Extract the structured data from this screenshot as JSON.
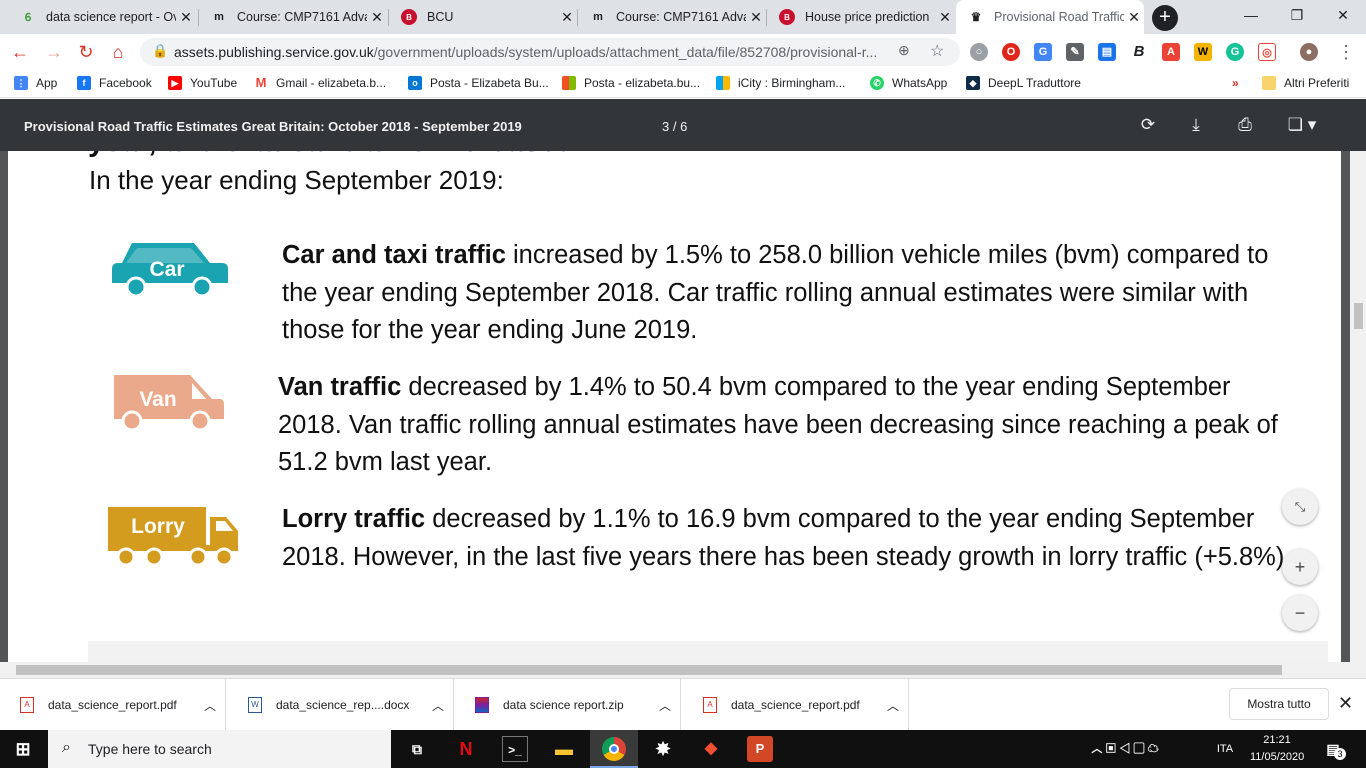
{
  "browser": {
    "tabs": [
      {
        "title": "data science report - Ov",
        "favicon": "overleaf-icon",
        "active": false
      },
      {
        "title": "Course: CMP7161 Adva",
        "favicon": "moodle-icon",
        "active": false
      },
      {
        "title": "BCU",
        "favicon": "bcu-icon",
        "active": false
      },
      {
        "title": "Course: CMP7161 Adva",
        "favicon": "moodle-icon",
        "active": false
      },
      {
        "title": "House price prediction",
        "favicon": "bcu-icon",
        "active": false
      },
      {
        "title": "Provisional Road Traffic",
        "favicon": "govuk-crown-icon",
        "active": true
      }
    ],
    "url_host": "assets.publishing.service.gov.uk",
    "url_path": "/government/uploads/system/uploads/attachment_data/file/852708/provisional-r...",
    "bookmarks": [
      {
        "label": "App",
        "icon": "apps-grid-icon"
      },
      {
        "label": "Facebook",
        "icon": "facebook-icon"
      },
      {
        "label": "YouTube",
        "icon": "youtube-icon"
      },
      {
        "label": "Gmail - elizabeta.b...",
        "icon": "gmail-icon"
      },
      {
        "label": "Posta - Elizabeta Bu...",
        "icon": "outlook-icon"
      },
      {
        "label": "Posta - elizabeta.bu...",
        "icon": "microsoft-icon"
      },
      {
        "label": "iCity : Birmingham...",
        "icon": "microsoft-icon"
      },
      {
        "label": "WhatsApp",
        "icon": "whatsapp-icon"
      },
      {
        "label": "DeepL Traduttore",
        "icon": "deepl-icon"
      }
    ],
    "bookmarks_overflow": "»",
    "other_bookmarks": "Altri Preferiti"
  },
  "pdf": {
    "title": "Provisional Road Traffic Estimates Great Britain: October 2018 - September 2019",
    "page_indicator": "3 / 6",
    "clipped_heading": "year, and that car traffic increased.",
    "lead": "In the year ending September 2019:",
    "items": [
      {
        "icon_label": "Car",
        "bold": "Car and taxi traffic",
        "text": " increased by 1.5% to 258.0 billion vehicle miles (bvm) compared to the year ending September 2018. Car traffic rolling annual estimates were similar with those for the year ending June 2019.",
        "color": "#1aa3b0"
      },
      {
        "icon_label": "Van",
        "bold": "Van traffic",
        "text": " decreased by 1.4% to 50.4 bvm compared to the year ending September 2018. Van traffic rolling annual estimates have been decreasing since reaching a peak of 51.2 bvm last year.",
        "color": "#e9a98a"
      },
      {
        "icon_label": "Lorry",
        "bold": "Lorry traffic",
        "text": " decreased by 1.1% to 16.9 bvm compared to the year ending September 2018. However, in the last five years there has been steady growth in lorry traffic (+5.8%).",
        "color": "#d39c1f"
      }
    ]
  },
  "downloads": {
    "items": [
      {
        "name": "data_science_report.pdf",
        "type": "pdf"
      },
      {
        "name": "data_science_rep....docx",
        "type": "docx"
      },
      {
        "name": "data science report.zip",
        "type": "zip"
      },
      {
        "name": "data_science_report.pdf",
        "type": "pdf"
      }
    ],
    "show_all": "Mostra tutto"
  },
  "taskbar": {
    "search_placeholder": "Type here to search",
    "language": "ITA",
    "time": "21:21",
    "date": "11/05/2020",
    "notification_count": "3"
  }
}
